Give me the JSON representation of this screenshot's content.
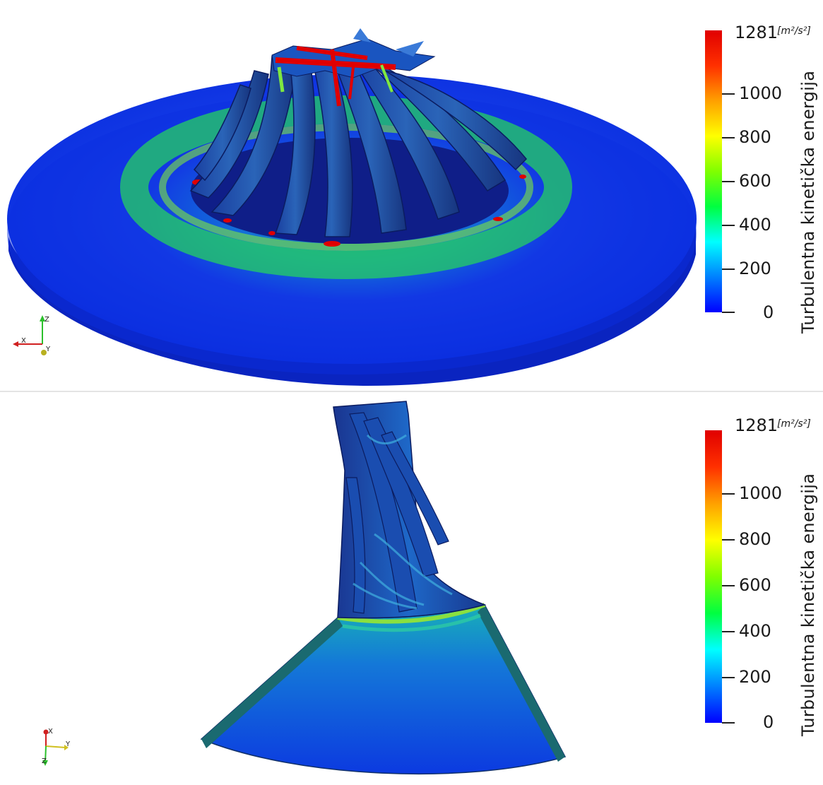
{
  "panels": [
    {
      "colorbar": {
        "title": "Turbulentna kinetička energija",
        "units": "[m²/s²]",
        "max_label": "1281",
        "tick_labels": [
          "1000",
          "800",
          "600",
          "400",
          "200",
          "0"
        ],
        "gradient": [
          "#0000ff",
          "#0080ff",
          "#00ffff",
          "#00ff40",
          "#80ff00",
          "#ffff00",
          "#ffa000",
          "#ff3000",
          "#e00000"
        ]
      },
      "axes_triad": {
        "labels": [
          "Z",
          "X",
          "Y"
        ]
      }
    },
    {
      "colorbar": {
        "title": "Turbulentna kinetička energija",
        "units": "[m²/s²]",
        "max_label": "1281",
        "tick_labels": [
          "1000",
          "800",
          "600",
          "400",
          "200",
          "0"
        ],
        "gradient": [
          "#0000ff",
          "#0080ff",
          "#00ffff",
          "#00ff40",
          "#80ff00",
          "#ffff00",
          "#ffa000",
          "#ff3000",
          "#e00000"
        ]
      },
      "axes_triad": {
        "labels": [
          "X",
          "Y",
          "Z"
        ]
      }
    }
  ]
}
